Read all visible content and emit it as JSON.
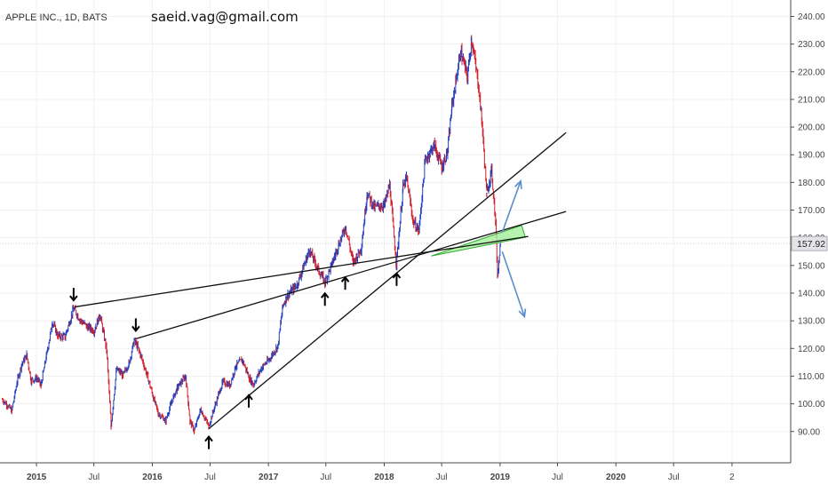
{
  "header": {
    "symbol": "APPLE INC., 1D, BATS",
    "author": "saeid.vag@gmail.com"
  },
  "chart_data": {
    "type": "line",
    "series": [
      {
        "values": [
          [
            "2014-09-15",
            101.6
          ],
          [
            "2014-10-01",
            99.5
          ],
          [
            "2014-10-15",
            97.5
          ],
          [
            "2014-11-01",
            108.0
          ],
          [
            "2014-11-15",
            114.2
          ],
          [
            "2014-12-01",
            117.6
          ],
          [
            "2014-12-15",
            108.4
          ],
          [
            "2015-01-02",
            109.3
          ],
          [
            "2015-01-15",
            106.8
          ],
          [
            "2015-02-01",
            117.2
          ],
          [
            "2015-02-20",
            129.5
          ],
          [
            "2015-03-10",
            124.5
          ],
          [
            "2015-04-01",
            124.3
          ],
          [
            "2015-04-28",
            134.5
          ],
          [
            "2015-05-20",
            130.1
          ],
          [
            "2015-06-10",
            127.9
          ],
          [
            "2015-07-01",
            126.4
          ],
          [
            "2015-07-20",
            132.0
          ],
          [
            "2015-08-10",
            119.7
          ],
          [
            "2015-08-24",
            92.0
          ],
          [
            "2015-09-10",
            112.5
          ],
          [
            "2015-10-01",
            110.4
          ],
          [
            "2015-10-20",
            114.9
          ],
          [
            "2015-11-05",
            123.0
          ],
          [
            "2015-11-20",
            119.4
          ],
          [
            "2015-12-15",
            110.6
          ],
          [
            "2016-01-05",
            102.0
          ],
          [
            "2016-01-20",
            96.5
          ],
          [
            "2016-02-12",
            93.9
          ],
          [
            "2016-03-01",
            100.5
          ],
          [
            "2016-03-20",
            105.9
          ],
          [
            "2016-04-15",
            110.0
          ],
          [
            "2016-04-29",
            93.7
          ],
          [
            "2016-05-12",
            90.3
          ],
          [
            "2016-06-01",
            98.0
          ],
          [
            "2016-06-27",
            92.0
          ],
          [
            "2016-07-15",
            98.8
          ],
          [
            "2016-08-10",
            108.0
          ],
          [
            "2016-09-01",
            106.7
          ],
          [
            "2016-09-20",
            113.6
          ],
          [
            "2016-10-10",
            116.0
          ],
          [
            "2016-11-03",
            109.0
          ],
          [
            "2016-11-15",
            107.1
          ],
          [
            "2016-12-10",
            113.0
          ],
          [
            "2017-01-03",
            116.0
          ],
          [
            "2017-01-31",
            121.0
          ],
          [
            "2017-02-15",
            135.5
          ],
          [
            "2017-03-01",
            139.0
          ],
          [
            "2017-04-01",
            143.0
          ],
          [
            "2017-05-10",
            155.5
          ],
          [
            "2017-06-09",
            148.0
          ],
          [
            "2017-06-28",
            144.0
          ],
          [
            "2017-07-20",
            150.5
          ],
          [
            "2017-08-10",
            157.5
          ],
          [
            "2017-09-01",
            164.0
          ],
          [
            "2017-09-25",
            151.0
          ],
          [
            "2017-10-20",
            156.0
          ],
          [
            "2017-11-08",
            176.0
          ],
          [
            "2017-12-01",
            171.0
          ],
          [
            "2018-01-02",
            172.0
          ],
          [
            "2018-01-18",
            179.1
          ],
          [
            "2018-02-08",
            150.5
          ],
          [
            "2018-03-01",
            178.0
          ],
          [
            "2018-03-12",
            181.7
          ],
          [
            "2018-04-02",
            166.0
          ],
          [
            "2018-04-20",
            162.5
          ],
          [
            "2018-05-10",
            188.0
          ],
          [
            "2018-06-07",
            193.5
          ],
          [
            "2018-07-02",
            185.5
          ],
          [
            "2018-07-20",
            191.5
          ],
          [
            "2018-08-02",
            207.4
          ],
          [
            "2018-08-30",
            227.5
          ],
          [
            "2018-09-20",
            218.0
          ],
          [
            "2018-10-03",
            232.1
          ],
          [
            "2018-10-25",
            215.0
          ],
          [
            "2018-11-05",
            201.5
          ],
          [
            "2018-11-20",
            176.0
          ],
          [
            "2018-12-05",
            184.5
          ],
          [
            "2018-12-18",
            166.0
          ],
          [
            "2018-12-24",
            146.6
          ],
          [
            "2019-01-02",
            157.9
          ]
        ]
      }
    ],
    "y_ticks": [
      90,
      100,
      110,
      120,
      130,
      140,
      150,
      160,
      170,
      180,
      190,
      200,
      210,
      220,
      230,
      240
    ],
    "y_tick_labels": [
      "90.00",
      "100.00",
      "110.00",
      "120.00",
      "130.00",
      "140.00",
      "150.00",
      "160.00",
      "170.00",
      "180.00",
      "190.00",
      "200.00",
      "210.00",
      "220.00",
      "230.00",
      "240.00"
    ],
    "x_ticks": [
      {
        "label": "2015",
        "date": "2015-01-01"
      },
      {
        "label": "Jul",
        "date": "2015-07-01"
      },
      {
        "label": "2016",
        "date": "2016-01-01"
      },
      {
        "label": "Jul",
        "date": "2016-07-01"
      },
      {
        "label": "2017",
        "date": "2017-01-01"
      },
      {
        "label": "Jul",
        "date": "2017-07-01"
      },
      {
        "label": "2018",
        "date": "2018-01-01"
      },
      {
        "label": "Jul",
        "date": "2018-07-01"
      },
      {
        "label": "2019",
        "date": "2019-01-01"
      },
      {
        "label": "Jul",
        "date": "2019-07-01"
      },
      {
        "label": "2020",
        "date": "2020-01-01"
      },
      {
        "label": "Jul",
        "date": "2020-07-01"
      },
      {
        "label": "2",
        "date": "2021-01-01"
      }
    ],
    "xlim": [
      "2014-09-08",
      "2021-07-05"
    ],
    "ylim": [
      83.5,
      244
    ],
    "last_price": 157.92,
    "last_price_label": "157.92",
    "trendlines": [
      {
        "from": [
          "2015-05-01",
          135.0
        ],
        "to": [
          "2019-03-31",
          160.5
        ]
      },
      {
        "from": [
          "2015-11-10",
          123.5
        ],
        "to": [
          "2019-07-28",
          169.5
        ]
      },
      {
        "from": [
          "2016-06-27",
          91.0
        ],
        "to": [
          "2019-07-28",
          198.0
        ]
      }
    ],
    "wedge": {
      "points": [
        [
          "2018-05-29",
          153.4
        ],
        [
          "2019-03-10",
          164.5
        ],
        [
          "2019-03-22",
          160.2
        ]
      ],
      "fill": "#a8f0a0",
      "stroke": "#33aa33"
    },
    "scenario_arrows": [
      {
        "from": [
          "2019-01-08",
          162.0
        ],
        "to": [
          "2019-03-07",
          180.5
        ],
        "color": "#5a8ec8"
      },
      {
        "from": [
          "2019-01-08",
          155.0
        ],
        "to": [
          "2019-03-19",
          131.5
        ],
        "color": "#5a8ec8"
      }
    ],
    "pivot_arrows": [
      {
        "type": "down",
        "at": [
          "2015-04-28",
          134.5
        ]
      },
      {
        "type": "down",
        "at": [
          "2015-11-10",
          123.5
        ]
      },
      {
        "type": "up",
        "at": [
          "2016-06-27",
          91.0
        ]
      },
      {
        "type": "up",
        "at": [
          "2016-10-31",
          106.0
        ]
      },
      {
        "type": "up",
        "at": [
          "2017-06-28",
          142.8
        ]
      },
      {
        "type": "up",
        "at": [
          "2017-08-31",
          148.6
        ]
      },
      {
        "type": "up",
        "at": [
          "2018-02-09",
          150.0
        ]
      }
    ],
    "colors": {
      "up": "#1f3fbf",
      "down": "#d21f2a",
      "trendline": "#111111",
      "grid": "#f1f1f3",
      "axis": "#4a4a4a",
      "price_line": "#c9c9c9",
      "price_label_bg": "#e4e4e8"
    }
  }
}
